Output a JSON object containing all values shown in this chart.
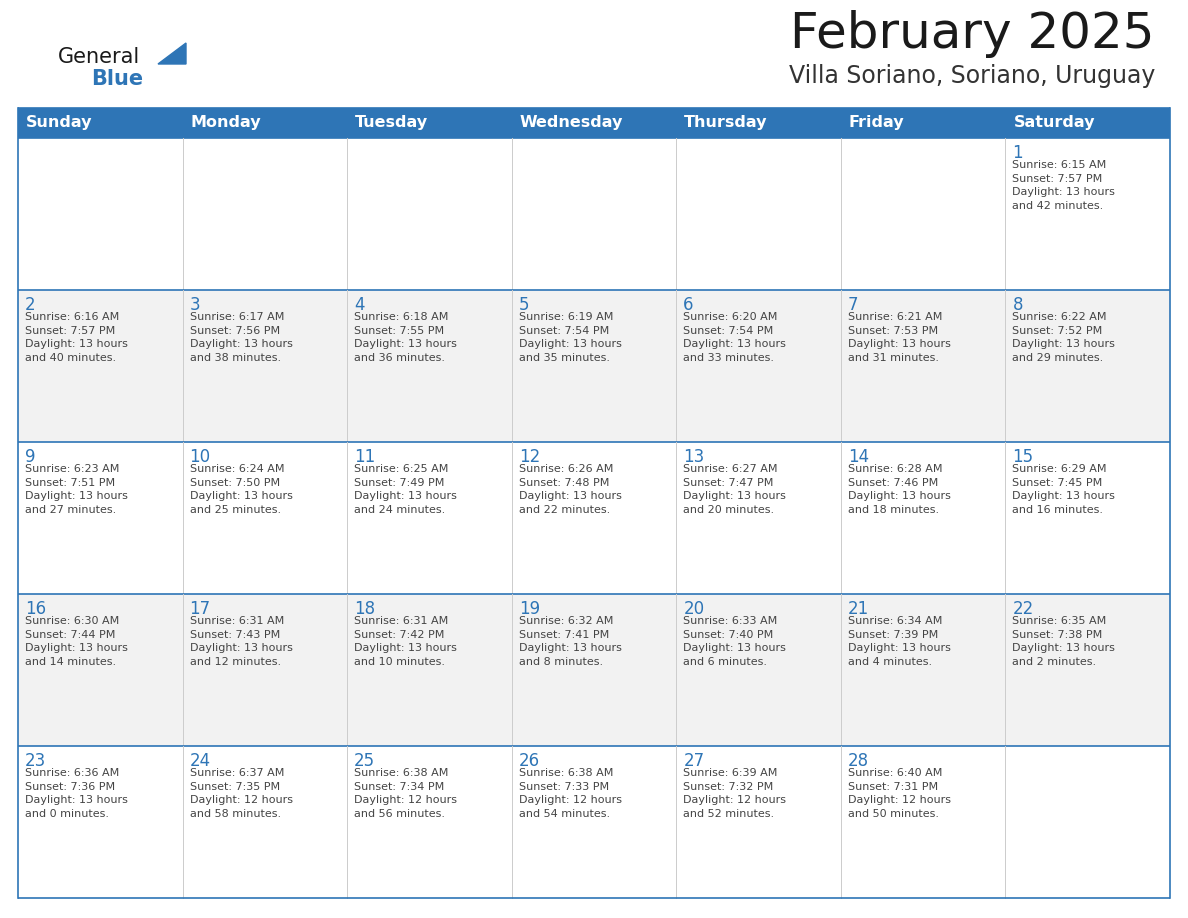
{
  "title": "February 2025",
  "subtitle": "Villa Soriano, Soriano, Uruguay",
  "header_bg": "#2E75B6",
  "header_text_color": "#FFFFFF",
  "header_days": [
    "Sunday",
    "Monday",
    "Tuesday",
    "Wednesday",
    "Thursday",
    "Friday",
    "Saturday"
  ],
  "cell_bg_white": "#FFFFFF",
  "cell_bg_gray": "#F2F2F2",
  "row_border_color": "#2E75B6",
  "col_border_color": "#CCCCCC",
  "day_number_color": "#2E75B6",
  "cell_text_color": "#444444",
  "logo_general_color": "#1a1a1a",
  "logo_blue_color": "#2E75B6",
  "title_color": "#1a1a1a",
  "subtitle_color": "#333333",
  "weeks": [
    [
      {
        "day": null,
        "info": null
      },
      {
        "day": null,
        "info": null
      },
      {
        "day": null,
        "info": null
      },
      {
        "day": null,
        "info": null
      },
      {
        "day": null,
        "info": null
      },
      {
        "day": null,
        "info": null
      },
      {
        "day": 1,
        "info": "Sunrise: 6:15 AM\nSunset: 7:57 PM\nDaylight: 13 hours\nand 42 minutes."
      }
    ],
    [
      {
        "day": 2,
        "info": "Sunrise: 6:16 AM\nSunset: 7:57 PM\nDaylight: 13 hours\nand 40 minutes."
      },
      {
        "day": 3,
        "info": "Sunrise: 6:17 AM\nSunset: 7:56 PM\nDaylight: 13 hours\nand 38 minutes."
      },
      {
        "day": 4,
        "info": "Sunrise: 6:18 AM\nSunset: 7:55 PM\nDaylight: 13 hours\nand 36 minutes."
      },
      {
        "day": 5,
        "info": "Sunrise: 6:19 AM\nSunset: 7:54 PM\nDaylight: 13 hours\nand 35 minutes."
      },
      {
        "day": 6,
        "info": "Sunrise: 6:20 AM\nSunset: 7:54 PM\nDaylight: 13 hours\nand 33 minutes."
      },
      {
        "day": 7,
        "info": "Sunrise: 6:21 AM\nSunset: 7:53 PM\nDaylight: 13 hours\nand 31 minutes."
      },
      {
        "day": 8,
        "info": "Sunrise: 6:22 AM\nSunset: 7:52 PM\nDaylight: 13 hours\nand 29 minutes."
      }
    ],
    [
      {
        "day": 9,
        "info": "Sunrise: 6:23 AM\nSunset: 7:51 PM\nDaylight: 13 hours\nand 27 minutes."
      },
      {
        "day": 10,
        "info": "Sunrise: 6:24 AM\nSunset: 7:50 PM\nDaylight: 13 hours\nand 25 minutes."
      },
      {
        "day": 11,
        "info": "Sunrise: 6:25 AM\nSunset: 7:49 PM\nDaylight: 13 hours\nand 24 minutes."
      },
      {
        "day": 12,
        "info": "Sunrise: 6:26 AM\nSunset: 7:48 PM\nDaylight: 13 hours\nand 22 minutes."
      },
      {
        "day": 13,
        "info": "Sunrise: 6:27 AM\nSunset: 7:47 PM\nDaylight: 13 hours\nand 20 minutes."
      },
      {
        "day": 14,
        "info": "Sunrise: 6:28 AM\nSunset: 7:46 PM\nDaylight: 13 hours\nand 18 minutes."
      },
      {
        "day": 15,
        "info": "Sunrise: 6:29 AM\nSunset: 7:45 PM\nDaylight: 13 hours\nand 16 minutes."
      }
    ],
    [
      {
        "day": 16,
        "info": "Sunrise: 6:30 AM\nSunset: 7:44 PM\nDaylight: 13 hours\nand 14 minutes."
      },
      {
        "day": 17,
        "info": "Sunrise: 6:31 AM\nSunset: 7:43 PM\nDaylight: 13 hours\nand 12 minutes."
      },
      {
        "day": 18,
        "info": "Sunrise: 6:31 AM\nSunset: 7:42 PM\nDaylight: 13 hours\nand 10 minutes."
      },
      {
        "day": 19,
        "info": "Sunrise: 6:32 AM\nSunset: 7:41 PM\nDaylight: 13 hours\nand 8 minutes."
      },
      {
        "day": 20,
        "info": "Sunrise: 6:33 AM\nSunset: 7:40 PM\nDaylight: 13 hours\nand 6 minutes."
      },
      {
        "day": 21,
        "info": "Sunrise: 6:34 AM\nSunset: 7:39 PM\nDaylight: 13 hours\nand 4 minutes."
      },
      {
        "day": 22,
        "info": "Sunrise: 6:35 AM\nSunset: 7:38 PM\nDaylight: 13 hours\nand 2 minutes."
      }
    ],
    [
      {
        "day": 23,
        "info": "Sunrise: 6:36 AM\nSunset: 7:36 PM\nDaylight: 13 hours\nand 0 minutes."
      },
      {
        "day": 24,
        "info": "Sunrise: 6:37 AM\nSunset: 7:35 PM\nDaylight: 12 hours\nand 58 minutes."
      },
      {
        "day": 25,
        "info": "Sunrise: 6:38 AM\nSunset: 7:34 PM\nDaylight: 12 hours\nand 56 minutes."
      },
      {
        "day": 26,
        "info": "Sunrise: 6:38 AM\nSunset: 7:33 PM\nDaylight: 12 hours\nand 54 minutes."
      },
      {
        "day": 27,
        "info": "Sunrise: 6:39 AM\nSunset: 7:32 PM\nDaylight: 12 hours\nand 52 minutes."
      },
      {
        "day": 28,
        "info": "Sunrise: 6:40 AM\nSunset: 7:31 PM\nDaylight: 12 hours\nand 50 minutes."
      },
      {
        "day": null,
        "info": null
      }
    ]
  ],
  "figsize": [
    11.88,
    9.18
  ],
  "dpi": 100
}
